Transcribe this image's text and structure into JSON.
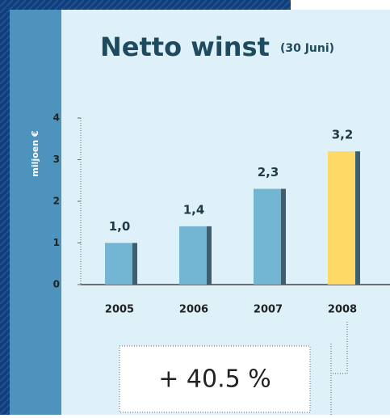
{
  "chart_data": {
    "type": "bar",
    "title": "Netto winst",
    "subtitle": "(30 Juni)",
    "y_label": "miljoen €",
    "categories": [
      "2005",
      "2006",
      "2007",
      "2008"
    ],
    "values": [
      1.0,
      1.4,
      2.3,
      3.2
    ],
    "value_labels": [
      "1,0",
      "1,4",
      "2,3",
      "3,2"
    ],
    "colors": [
      "#72b6d4",
      "#72b6d4",
      "#72b6d4",
      "#ffd966"
    ],
    "ylim": [
      0,
      4
    ],
    "yticks": [
      0,
      1,
      2,
      3,
      4
    ],
    "annotation": "+ 40.5 %"
  }
}
